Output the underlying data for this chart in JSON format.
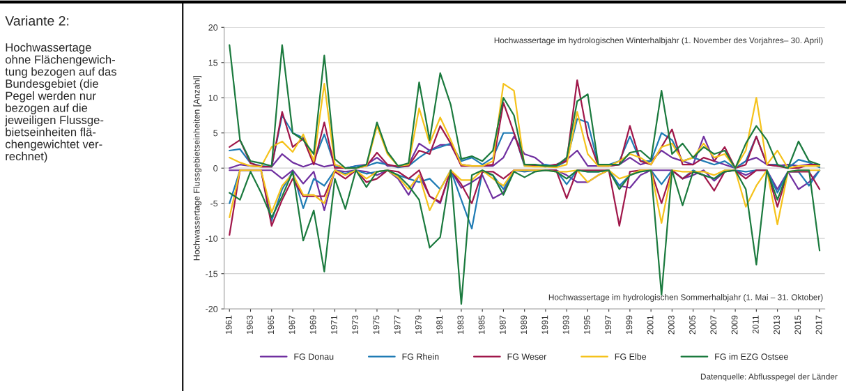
{
  "chart_data": {
    "type": "line",
    "xlabel": null,
    "ylabel": "Hochwassertage Flussgebietseinheiten [Anzahl]",
    "annotations": [
      "Variante 2:",
      "Hochwassertage\nohne Flächengewich-\ntung bezogen auf das\nBundesgebiet (die\nPegel werden nur\nbezogen auf die\njeweiligen Flussge-\nbietseinheiten flä-\nchengewichtet ver-\nrechnet)",
      "Hochwassertage im hydrologischen Winterhalbjahr (1. November des Vorjahres– 30. April)",
      "Hochwassertage im hydrologischen Sommerhalbjahr (1. Mai – 31. Oktober)",
      "Datenquelle: Abflusspegel der Länder"
    ],
    "x": [
      1961,
      1962,
      1963,
      1964,
      1965,
      1966,
      1967,
      1968,
      1969,
      1970,
      1971,
      1972,
      1973,
      1974,
      1975,
      1976,
      1977,
      1978,
      1979,
      1980,
      1981,
      1982,
      1983,
      1984,
      1985,
      1986,
      1987,
      1988,
      1989,
      1990,
      1991,
      1992,
      1993,
      1994,
      1995,
      1996,
      1997,
      1998,
      1999,
      2000,
      2001,
      2002,
      2003,
      2004,
      2005,
      2006,
      2007,
      2008,
      2009,
      2010,
      2011,
      2012,
      2013,
      2014,
      2015,
      2016,
      2017
    ],
    "xlim": [
      1960.5,
      2017.5
    ],
    "xticks": [
      1961,
      1963,
      1965,
      1967,
      1969,
      1971,
      1973,
      1975,
      1977,
      1979,
      1981,
      1983,
      1985,
      1987,
      1989,
      1991,
      1993,
      1995,
      1997,
      1999,
      2001,
      2003,
      2005,
      2007,
      2009,
      2011,
      2013,
      2015,
      2017
    ],
    "ylim": [
      -20,
      20
    ],
    "yticks": [
      -20,
      -15,
      -10,
      -5,
      0,
      5,
      10,
      15,
      20
    ],
    "grid": "y",
    "legend": "bottom",
    "line_style": "solid",
    "series": [
      {
        "name": "FG Donau",
        "color": "#7030a0",
        "values": [
          0,
          0.5,
          0.3,
          0.2,
          0.2,
          2,
          0.8,
          0.2,
          0.7,
          0.2,
          0.5,
          0,
          0.3,
          0.5,
          1.5,
          0.3,
          0.3,
          0.5,
          3.5,
          2.5,
          3.3,
          3.3,
          0.5,
          0.3,
          0.3,
          0.3,
          1.5,
          4.5,
          2,
          1.5,
          0.3,
          0.5,
          1.2,
          2.5,
          0.3,
          0.3,
          0.3,
          0.5,
          1.5,
          0.5,
          1,
          2.5,
          1.5,
          1,
          0.5,
          4.5,
          1,
          0.5,
          0,
          1,
          1.5,
          0.5,
          0.3,
          0.5,
          0.3,
          0.5,
          0.5
        ]
      },
      {
        "name": "FG Rhein",
        "color": "#1f7bb4",
        "values": [
          2.5,
          2.7,
          0.7,
          0.3,
          0.2,
          7.5,
          5,
          4.3,
          1,
          4.8,
          0.3,
          0,
          0.3,
          0.3,
          0.8,
          0.5,
          0.1,
          0.3,
          1.5,
          2.5,
          3,
          3.5,
          1,
          1.5,
          0.5,
          1.5,
          5,
          5,
          0.3,
          0.3,
          0.5,
          0.2,
          1,
          7,
          6.5,
          0.5,
          0.5,
          1,
          4.5,
          1,
          1,
          5,
          4,
          1,
          1.5,
          1,
          0.5,
          1,
          0,
          1,
          4.5,
          0.5,
          0.5,
          0,
          1.2,
          0.8,
          0.1
        ]
      },
      {
        "name": "FG Weser",
        "color": "#a0174a",
        "values": [
          3,
          4,
          0.7,
          0.2,
          0.2,
          8,
          3,
          4.2,
          0.5,
          6.5,
          0,
          0,
          0,
          0.3,
          2.2,
          0.5,
          0.2,
          0.3,
          2.5,
          2,
          6,
          3.5,
          0.3,
          0.3,
          0.3,
          0.5,
          9.3,
          5,
          0.5,
          0.3,
          0.2,
          0.5,
          1,
          12.5,
          4.5,
          0.3,
          0.3,
          0.5,
          6,
          1,
          0.5,
          3,
          5.5,
          0.5,
          0.5,
          1.5,
          1,
          3,
          0,
          0.5,
          4.5,
          0.5,
          0.3,
          0,
          0,
          0.5,
          0.5
        ]
      },
      {
        "name": "FG Elbe",
        "color": "#f5c21b",
        "values": [
          1.5,
          0.8,
          0.3,
          0.2,
          3,
          3.8,
          2.3,
          4.8,
          1,
          12,
          0.5,
          0,
          0,
          0.3,
          6,
          2,
          0.3,
          0.5,
          8.5,
          3.5,
          7.2,
          4,
          0.5,
          0.3,
          0.3,
          1,
          12,
          11,
          0.3,
          0.2,
          0.2,
          0.1,
          0.5,
          8,
          2,
          0.3,
          0.3,
          1,
          2,
          1.5,
          0.5,
          3,
          3.5,
          1,
          1.5,
          3.5,
          1.5,
          2,
          0,
          2.5,
          10,
          0.5,
          2.5,
          0,
          0.3,
          0.3,
          0.3
        ]
      },
      {
        "name": "FG im EZG Ostsee",
        "color": "#1b7a3e",
        "values": [
          17.5,
          4,
          1,
          0.7,
          0.3,
          17.5,
          5,
          4,
          2,
          16,
          1.3,
          0,
          0,
          0.5,
          6.5,
          2.3,
          0.3,
          0.7,
          12.2,
          4,
          13.5,
          9,
          1.3,
          1.7,
          1,
          2.5,
          10,
          7.5,
          0.5,
          0.5,
          0.3,
          0.3,
          1.5,
          9.5,
          10.5,
          0.5,
          0.5,
          0.5,
          2.2,
          2.5,
          1.2,
          11,
          2,
          3.5,
          1.5,
          3,
          2,
          2.5,
          0,
          3.5,
          6,
          4,
          0.5,
          0,
          3.8,
          1,
          0.5
        ]
      },
      {
        "color": "#7030a0",
        "values": [
          -0.3,
          -0.3,
          -0.3,
          -0.3,
          -0.3,
          -1.5,
          -0.3,
          -2.2,
          -0.5,
          -6,
          -0.3,
          -0.5,
          -0.3,
          -0.5,
          -1,
          -0.3,
          -1.5,
          -3.8,
          -1,
          -4,
          -5,
          -0.3,
          -2.8,
          -2,
          -1,
          -4.3,
          -3.5,
          -0.3,
          -0.3,
          -0.3,
          -0.3,
          -0.3,
          -1,
          -2,
          -2,
          -1,
          -0.3,
          -2.5,
          -2.8,
          -1,
          -0.3,
          -0.3,
          -0.3,
          -1.5,
          -1,
          -0.3,
          -1.8,
          -0.5,
          -0.3,
          -1,
          -0.3,
          -0.3,
          -3,
          -0.5,
          -3,
          -2,
          -0.3
        ]
      },
      {
        "color": "#1f7bb4",
        "values": [
          -5,
          -0.3,
          -0.3,
          -0.3,
          -7.5,
          -3,
          -0.5,
          -5.7,
          -1.5,
          -2.5,
          -0.3,
          -0.8,
          -0.3,
          -0.8,
          -0.5,
          -0.3,
          -1,
          -1.5,
          -2,
          -1.5,
          -3,
          -0.3,
          -4.5,
          -8.6,
          -0.5,
          -1,
          -3,
          -0.3,
          -0.5,
          -0.3,
          -0.3,
          -0.3,
          -2.3,
          -0.3,
          -0.5,
          -0.5,
          -0.3,
          -2.5,
          -1,
          -0.3,
          -0.3,
          -2.3,
          -0.3,
          -1.5,
          -0.3,
          -1,
          -1.5,
          -0.3,
          -0.3,
          -0.5,
          -0.3,
          -0.3,
          -3.5,
          -0.5,
          -0.5,
          -2.5,
          -0.3
        ]
      },
      {
        "color": "#a0174a",
        "values": [
          -9.5,
          -0.3,
          -0.3,
          -0.3,
          -8.2,
          -4.5,
          -1.5,
          -4,
          -4,
          -4,
          -0.5,
          -1.5,
          -0.3,
          -2,
          -1.5,
          -0.3,
          -0.5,
          -1.5,
          -0.3,
          -4,
          -4.8,
          -0.3,
          -2.3,
          -5,
          -0.5,
          -0.5,
          -1.5,
          -0.3,
          -0.3,
          -0.3,
          -0.3,
          -0.3,
          -4.3,
          -0.3,
          -0.3,
          -0.3,
          -0.3,
          -8.2,
          -0.5,
          -0.3,
          -0.3,
          -5,
          -0.3,
          -1.5,
          -0.5,
          -1,
          -3.2,
          -0.5,
          -0.3,
          -1.5,
          -0.3,
          -0.3,
          -5.5,
          -0.5,
          -0.5,
          -0.5,
          -3
        ]
      },
      {
        "color": "#f5c21b",
        "values": [
          -7,
          -0.3,
          -0.3,
          -0.3,
          -6.3,
          -2.5,
          -0.8,
          -3.8,
          -3.8,
          -5,
          -0.3,
          -1,
          -0.3,
          -1.5,
          -0.5,
          -0.3,
          -1.3,
          -3,
          -1,
          -6,
          -3,
          -0.3,
          -1.7,
          -1.7,
          -0.3,
          -1.5,
          -2.5,
          -0.3,
          -0.3,
          -0.3,
          -0.3,
          -0.5,
          -0.5,
          -0.3,
          -2,
          -1,
          -0.3,
          -1.5,
          -1,
          -0.3,
          -0.3,
          -7.8,
          -0.3,
          -0.5,
          -0.5,
          -0.5,
          -1,
          -0.3,
          -0.3,
          -5.5,
          -2.5,
          -0.3,
          -8,
          -0.5,
          -0.3,
          -0.3,
          -0.3
        ]
      },
      {
        "color": "#1b7a3e",
        "values": [
          -3.5,
          -4.5,
          -0.5,
          -3.5,
          -7,
          -4,
          -0.5,
          -10.3,
          -6,
          -14.7,
          -1.5,
          -5.8,
          -0.3,
          -2.7,
          -0.5,
          -0.3,
          -1,
          -2.5,
          -4.5,
          -11.3,
          -9.8,
          -0.3,
          -19.3,
          -1,
          -0.3,
          -1,
          -3.8,
          -0.5,
          -1.3,
          -0.5,
          -0.3,
          -0.5,
          -1.5,
          -0.3,
          -0.5,
          -0.5,
          -0.3,
          -3,
          -1,
          -0.5,
          -0.3,
          -18,
          -0.3,
          -5.3,
          -0.5,
          -1,
          -1.5,
          -0.5,
          -0.3,
          -3,
          -13.7,
          -0.3,
          -4.5,
          -0.5,
          -0.3,
          -0.3,
          -11.7
        ]
      }
    ]
  }
}
